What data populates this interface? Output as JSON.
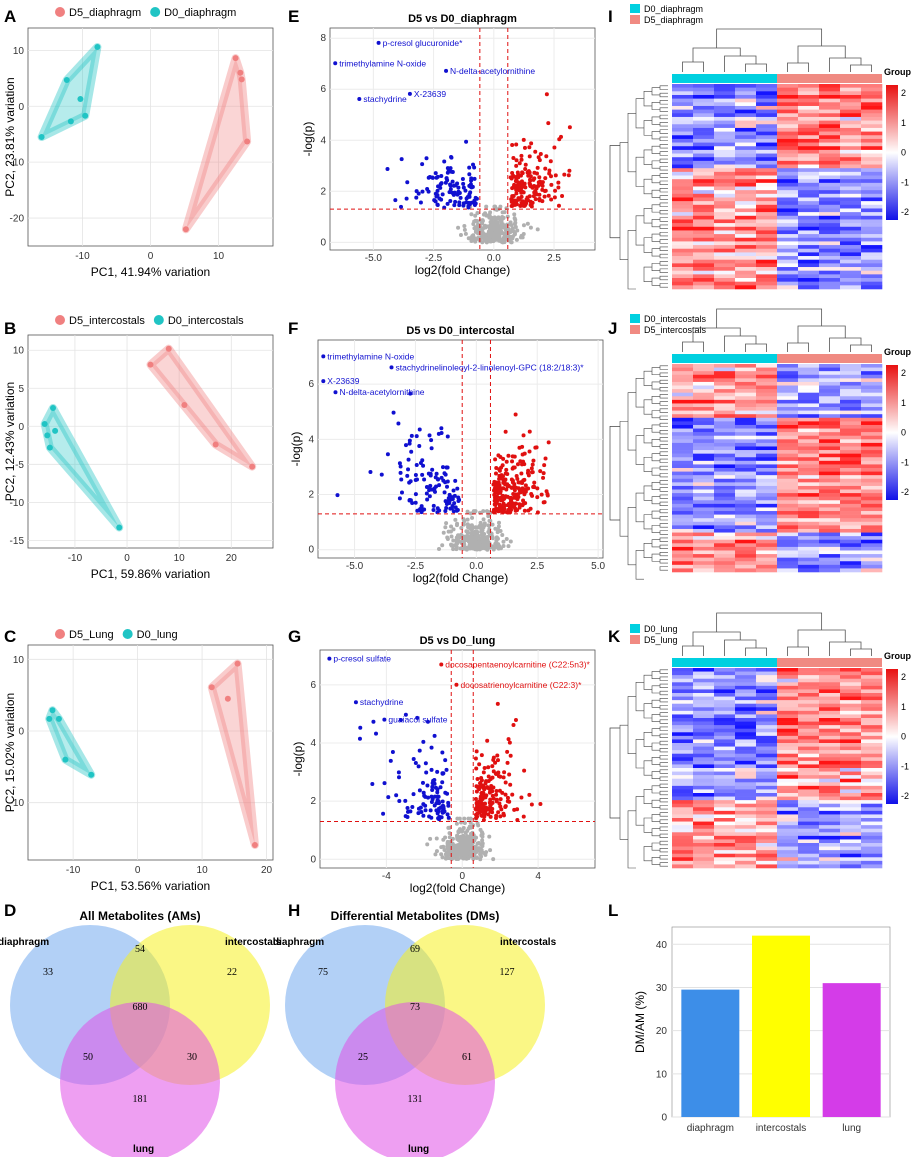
{
  "colors": {
    "d5": "#f08080",
    "d0": "#20c4c4",
    "up": "#e01010",
    "down": "#1010d0",
    "ns": "#b0b0b0",
    "hm_cyan": "#00d0e0",
    "hm_pink": "#f08a82",
    "hm_red": "#e02020",
    "hm_blue": "#2020e0"
  },
  "panel_labels": {
    "A": "A",
    "B": "B",
    "C": "C",
    "D": "D",
    "E": "E",
    "F": "F",
    "G": "G",
    "H": "H",
    "I": "I",
    "J": "J",
    "K": "K",
    "L": "L"
  },
  "pca": [
    {
      "legend": [
        "D5_diaphragm",
        "D0_diaphragm"
      ],
      "xlabel": "PC1, 41.94% variation",
      "ylabel": "PC2, 23.81% variation",
      "xlim": [
        -18,
        18
      ],
      "ylim": [
        -25,
        14
      ],
      "xticks": [
        -10,
        0,
        10
      ],
      "yticks": [
        -20,
        -10,
        0,
        10
      ],
      "d5": [
        [
          12.5,
          8.6
        ],
        [
          13.2,
          6.0
        ],
        [
          13.4,
          4.8
        ],
        [
          14.2,
          -6.3
        ],
        [
          5.2,
          -22.0
        ]
      ],
      "d0": [
        [
          -7.8,
          10.6
        ],
        [
          -12.3,
          4.7
        ],
        [
          -10.3,
          1.3
        ],
        [
          -9.6,
          -1.7
        ],
        [
          -11.7,
          -2.7
        ],
        [
          -16.0,
          -5.5
        ]
      ]
    },
    {
      "legend": [
        "D5_intercostals",
        "D0_intercostals"
      ],
      "xlabel": "PC1, 59.86% variation",
      "ylabel": "PC2, 12.43% variation",
      "xlim": [
        -19,
        28
      ],
      "ylim": [
        -16,
        12
      ],
      "xticks": [
        -10,
        0,
        10,
        20
      ],
      "yticks": [
        -15,
        -10,
        -5,
        0,
        5,
        10
      ],
      "d5": [
        [
          8.0,
          10.2
        ],
        [
          4.5,
          8.1
        ],
        [
          11.0,
          2.8
        ],
        [
          17.0,
          -2.4
        ],
        [
          24.0,
          -5.3
        ]
      ],
      "d0": [
        [
          -14.2,
          2.4
        ],
        [
          -15.8,
          0.3
        ],
        [
          -13.8,
          -0.6
        ],
        [
          -14.8,
          -2.8
        ],
        [
          -15.3,
          -1.2
        ],
        [
          -1.5,
          -13.3
        ]
      ]
    },
    {
      "legend": [
        "D5_Lung",
        "D0_lung"
      ],
      "xlabel": "PC1, 53.56% variation",
      "ylabel": "PC2, 15.02% variation",
      "xlim": [
        -17,
        21
      ],
      "ylim": [
        -18,
        12
      ],
      "xticks": [
        -10,
        0,
        10,
        20
      ],
      "yticks": [
        -10,
        0,
        10
      ],
      "d5": [
        [
          15.5,
          9.4
        ],
        [
          11.5,
          6.1
        ],
        [
          14.0,
          4.5
        ],
        [
          18.2,
          -15.9
        ]
      ],
      "d0": [
        [
          -13.2,
          2.9
        ],
        [
          -13.7,
          1.7
        ],
        [
          -12.2,
          1.7
        ],
        [
          -11.2,
          -4.0
        ],
        [
          -7.2,
          -6.1
        ]
      ]
    }
  ],
  "volcano": [
    {
      "title": "D5 vs D0_diaphragm",
      "xlabel": "log2(fold Change)",
      "ylabel": "-log(p)",
      "xticks": [
        "-5.0",
        "-2.5",
        "0.0",
        "2.5"
      ],
      "xtick_vals": [
        -5,
        -2.5,
        0,
        2.5
      ],
      "yticks": [
        "0",
        "2",
        "4",
        "6",
        "8"
      ],
      "ytick_vals": [
        0,
        2,
        4,
        6,
        8
      ],
      "xlim": [
        -6.8,
        4.2
      ],
      "ylim": [
        -0.3,
        8.4
      ],
      "annotations": [
        {
          "text": "p-cresol glucuronide*",
          "x": -4.7,
          "y": 7.7,
          "color": "blue"
        },
        {
          "text": "trimethylamine N-oxide",
          "x": -6.5,
          "y": 6.9,
          "color": "blue"
        },
        {
          "text": "N-delta-acetylornithine",
          "x": -1.9,
          "y": 6.6,
          "color": "blue"
        },
        {
          "text": "X-23639",
          "x": -3.4,
          "y": 5.7,
          "color": "blue"
        },
        {
          "text": "stachydrine",
          "x": -5.5,
          "y": 5.5,
          "color": "blue"
        }
      ]
    },
    {
      "title": "D5 vs D0_intercostal",
      "xlabel": "log2(fold Change)",
      "ylabel": "-log(p)",
      "xticks": [
        "-5.0",
        "-2.5",
        "0.0",
        "2.5",
        "5.0"
      ],
      "xtick_vals": [
        -5,
        -2.5,
        0,
        2.5,
        5
      ],
      "yticks": [
        "0",
        "2",
        "4",
        "6"
      ],
      "ytick_vals": [
        0,
        2,
        4,
        6
      ],
      "xlim": [
        -6.5,
        5.2
      ],
      "ylim": [
        -0.3,
        7.6
      ],
      "annotations": [
        {
          "text": "trimethylamine N-oxide",
          "x": -6.2,
          "y": 6.9,
          "color": "blue"
        },
        {
          "text": "stachydrinelinoleoyl-2-linolenoyl-GPC (18:2/18:3)*",
          "x": -3.4,
          "y": 6.5,
          "color": "blue"
        },
        {
          "text": "X-23639",
          "x": -6.2,
          "y": 6.0,
          "color": "blue"
        },
        {
          "text": "N-delta-acetylornithine",
          "x": -5.7,
          "y": 5.6,
          "color": "blue"
        }
      ]
    },
    {
      "title": "D5 vs D0_lung",
      "xlabel": "log2(fold Change)",
      "ylabel": "-log(p)",
      "xticks": [
        "-4",
        "0",
        "4"
      ],
      "xtick_vals": [
        -4,
        0,
        4
      ],
      "yticks": [
        "0",
        "2",
        "4",
        "6"
      ],
      "ytick_vals": [
        0,
        2,
        4,
        6
      ],
      "xlim": [
        -7.5,
        7.0
      ],
      "ylim": [
        -0.3,
        7.2
      ],
      "annotations": [
        {
          "text": "p-cresol sulfate",
          "x": -6.9,
          "y": 6.8,
          "color": "blue"
        },
        {
          "text": "docosapentaenoylcarnitine (C22:5n3)*",
          "x": -1.0,
          "y": 6.6,
          "color": "red"
        },
        {
          "text": "docosatrienoylcarnitine (C22:3)*",
          "x": -0.2,
          "y": 5.9,
          "color": "red"
        },
        {
          "text": "stachydrine",
          "x": -5.5,
          "y": 5.3,
          "color": "blue"
        },
        {
          "text": "guaiacol sulfate",
          "x": -4.0,
          "y": 4.7,
          "color": "blue"
        }
      ]
    }
  ],
  "heatmaps": [
    {
      "legend": [
        "D0_diaphragm",
        "D5_diaphragm"
      ],
      "group_title": "Group",
      "scale": [
        "2",
        "1",
        "0",
        "-1",
        "-2"
      ]
    },
    {
      "legend": [
        "D0_intercostals",
        "D5_intercostals"
      ],
      "group_title": "Group",
      "scale": [
        "2",
        "1",
        "0",
        "-1",
        "-2"
      ]
    },
    {
      "legend": [
        "D0_lung",
        "D5_lung"
      ],
      "group_title": "Group",
      "scale": [
        "2",
        "1",
        "0",
        "-1",
        "-2"
      ]
    }
  ],
  "venn": [
    {
      "title": "All Metabolites (AMs)",
      "sets": [
        "diaphragm",
        "intercostals",
        "lung"
      ],
      "counts": {
        "d_only": "33",
        "d_i": "54",
        "i_only": "22",
        "all": "680",
        "d_l": "50",
        "i_l": "30",
        "l_only": "181"
      }
    },
    {
      "title": "Differential Metabolites (DMs)",
      "sets": [
        "diaphragm",
        "intercostals",
        "lung"
      ],
      "counts": {
        "d_only": "75",
        "d_i": "69",
        "i_only": "127",
        "all": "73",
        "d_l": "25",
        "i_l": "61",
        "l_only": "131"
      }
    }
  ],
  "chart_data": [
    {
      "type": "bar",
      "title": "",
      "categories": [
        "diaphragm",
        "intercostals",
        "lung"
      ],
      "values": [
        29.5,
        42.0,
        31.0
      ],
      "ylabel": "DM/AM (%)",
      "xlabel": "",
      "ylim": [
        0,
        44
      ],
      "yticks": [
        "0",
        "10",
        "20",
        "30",
        "40"
      ],
      "ytick_vals": [
        0,
        10,
        20,
        30,
        40
      ],
      "bar_colors": [
        "#3d8ee8",
        "#ffff00",
        "#d43ce8"
      ]
    }
  ]
}
